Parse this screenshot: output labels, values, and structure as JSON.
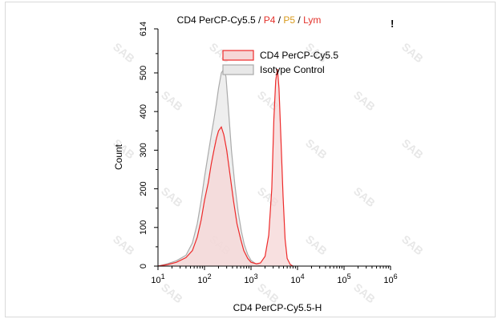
{
  "chart_data": {
    "type": "area",
    "title_parts": [
      {
        "text": "CD4 PerCP-Cy5.5",
        "color": "#000000"
      },
      {
        "text": "P4",
        "color": "#e3322b"
      },
      {
        "text": "P5",
        "color": "#d99a1c"
      },
      {
        "text": "Lym",
        "color": "#e3322b"
      }
    ],
    "title_separator": " / ",
    "flag": "!",
    "xlabel": "CD4 PerCP-Cy5.5-H",
    "ylabel": "Count",
    "x_scale": "log",
    "xlim": [
      10,
      1000000
    ],
    "ylim": [
      0,
      614
    ],
    "x_ticks": [
      {
        "base": "10",
        "exp": "1"
      },
      {
        "base": "10",
        "exp": "2"
      },
      {
        "base": "10",
        "exp": "3"
      },
      {
        "base": "10",
        "exp": "4"
      },
      {
        "base": "10",
        "exp": "5"
      },
      {
        "base": "10",
        "exp": "6"
      }
    ],
    "y_ticks": [
      "0",
      "100",
      "200",
      "300",
      "400",
      "500",
      "614"
    ],
    "legend_position": "top-right",
    "watermark": "SAB",
    "series": [
      {
        "name": "CD4 PerCP-Cy5.5",
        "color": "#ee2a2a",
        "fill": "#f6d6d6",
        "points": [
          [
            10,
            0
          ],
          [
            16,
            4
          ],
          [
            25,
            10
          ],
          [
            40,
            22
          ],
          [
            55,
            40
          ],
          [
            70,
            75
          ],
          [
            85,
            120
          ],
          [
            100,
            170
          ],
          [
            120,
            215
          ],
          [
            140,
            265
          ],
          [
            160,
            300
          ],
          [
            180,
            330
          ],
          [
            200,
            350
          ],
          [
            230,
            360
          ],
          [
            260,
            340
          ],
          [
            300,
            300
          ],
          [
            350,
            240
          ],
          [
            420,
            170
          ],
          [
            500,
            110
          ],
          [
            600,
            70
          ],
          [
            700,
            40
          ],
          [
            850,
            20
          ],
          [
            1000,
            10
          ],
          [
            1300,
            6
          ],
          [
            1600,
            8
          ],
          [
            2000,
            25
          ],
          [
            2400,
            80
          ],
          [
            2800,
            200
          ],
          [
            3100,
            380
          ],
          [
            3400,
            480
          ],
          [
            3700,
            510
          ],
          [
            4000,
            460
          ],
          [
            4400,
            330
          ],
          [
            4900,
            180
          ],
          [
            5400,
            70
          ],
          [
            6000,
            20
          ],
          [
            7000,
            4
          ],
          [
            8000,
            0
          ]
        ]
      },
      {
        "name": "Isotype Control",
        "color": "#aaaaaa",
        "fill": "#e8e8e8",
        "points": [
          [
            10,
            0
          ],
          [
            16,
            6
          ],
          [
            25,
            14
          ],
          [
            40,
            28
          ],
          [
            55,
            60
          ],
          [
            70,
            110
          ],
          [
            85,
            170
          ],
          [
            100,
            230
          ],
          [
            120,
            290
          ],
          [
            140,
            340
          ],
          [
            160,
            380
          ],
          [
            180,
            420
          ],
          [
            200,
            460
          ],
          [
            230,
            500
          ],
          [
            260,
            510
          ],
          [
            290,
            490
          ],
          [
            330,
            400
          ],
          [
            380,
            300
          ],
          [
            450,
            210
          ],
          [
            530,
            140
          ],
          [
            620,
            90
          ],
          [
            720,
            55
          ],
          [
            850,
            30
          ],
          [
            1000,
            15
          ],
          [
            1300,
            5
          ],
          [
            1700,
            0
          ]
        ]
      }
    ]
  }
}
